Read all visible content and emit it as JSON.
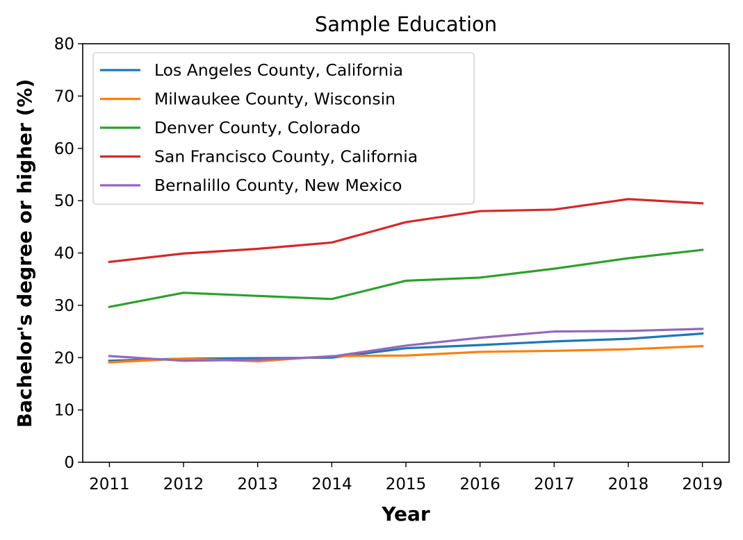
{
  "chart_data": {
    "type": "line",
    "title": "Sample Education",
    "xlabel": "Year",
    "ylabel": "Bachelor's degree or higher (%)",
    "x": [
      2011,
      2012,
      2013,
      2014,
      2015,
      2016,
      2017,
      2018,
      2019
    ],
    "x_tick_labels": [
      "2011",
      "2012",
      "2013",
      "2014",
      "2015",
      "2016",
      "2017",
      "2018",
      "2019"
    ],
    "ylim": [
      0,
      80
    ],
    "y_ticks": [
      0,
      10,
      20,
      30,
      40,
      50,
      60,
      70,
      80
    ],
    "grid": false,
    "legend_position": "top-left",
    "series": [
      {
        "name": "Los Angeles County, California",
        "color": "#1f77b4",
        "values": [
          19.4,
          19.8,
          19.9,
          20.0,
          21.8,
          22.4,
          23.1,
          23.6,
          24.6
        ]
      },
      {
        "name": "Milwaukee County, Wisconsin",
        "color": "#ff7f0e",
        "values": [
          19.1,
          19.8,
          19.3,
          20.3,
          20.4,
          21.1,
          21.3,
          21.6,
          22.2
        ]
      },
      {
        "name": "Denver County, Colorado",
        "color": "#2ca02c",
        "values": [
          29.7,
          32.4,
          31.8,
          31.2,
          34.7,
          35.3,
          37.0,
          39.0,
          40.6
        ]
      },
      {
        "name": "San Francisco County, California",
        "color": "#d62728",
        "values": [
          38.3,
          39.9,
          40.8,
          42.0,
          45.9,
          48.0,
          48.3,
          50.3,
          49.5
        ]
      },
      {
        "name": "Bernalillo County, New Mexico",
        "color": "#9467bd",
        "values": [
          20.3,
          19.4,
          19.6,
          20.2,
          22.3,
          23.8,
          25.0,
          25.1,
          25.5
        ]
      }
    ]
  }
}
